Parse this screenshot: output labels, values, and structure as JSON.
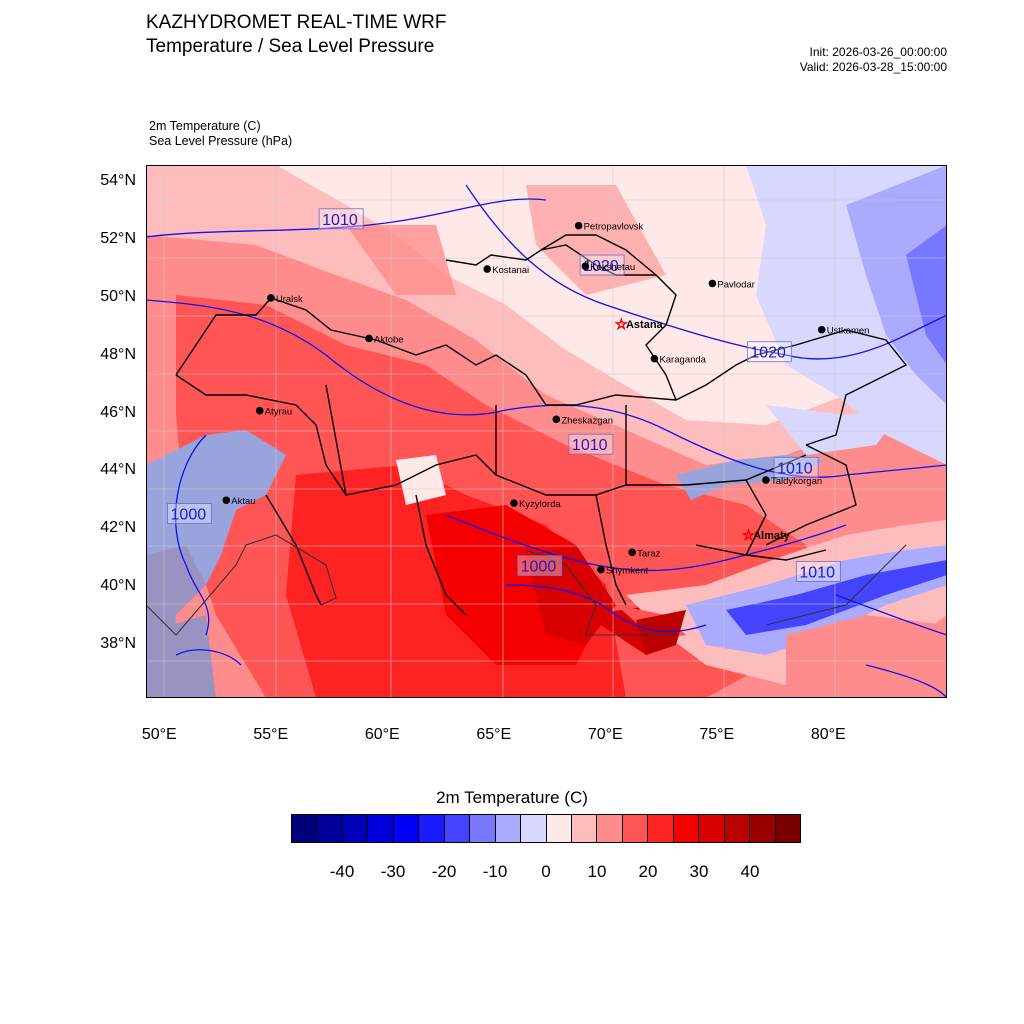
{
  "header": {
    "title_line1": "KAZHYDROMET REAL-TIME WRF",
    "title_line2": "Temperature / Sea Level Pressure",
    "init": "Init: 2026-03-26_00:00:00",
    "valid": "Valid: 2026-03-28_15:00:00",
    "var1": "2m Temperature   (C)",
    "var2": "Sea Level Pressure   (hPa)"
  },
  "axes": {
    "lat_labels": [
      "54°N",
      "52°N",
      "50°N",
      "48°N",
      "46°N",
      "44°N",
      "42°N",
      "40°N",
      "38°N"
    ],
    "lon_labels": [
      "50°E",
      "55°E",
      "60°E",
      "65°E",
      "70°E",
      "75°E",
      "80°E"
    ]
  },
  "cities": [
    {
      "name": "Petropavlovsk",
      "lon": 68.6,
      "lat": 52.5,
      "capital": false
    },
    {
      "name": "Kostanai",
      "lon": 64.5,
      "lat": 51.0,
      "capital": false
    },
    {
      "name": "Kokshetau",
      "lon": 68.9,
      "lat": 51.1,
      "capital": false
    },
    {
      "name": "Uralsk",
      "lon": 54.8,
      "lat": 50.0,
      "capital": false
    },
    {
      "name": "Pavlodar",
      "lon": 74.6,
      "lat": 50.5,
      "capital": false
    },
    {
      "name": "Astana",
      "lon": 70.5,
      "lat": 49.1,
      "capital": true
    },
    {
      "name": "Aktobe",
      "lon": 59.2,
      "lat": 48.6,
      "capital": false
    },
    {
      "name": "Ustkamen",
      "lon": 79.5,
      "lat": 48.9,
      "capital": false
    },
    {
      "name": "Karaganda",
      "lon": 72.0,
      "lat": 47.9,
      "capital": false
    },
    {
      "name": "Atyrau",
      "lon": 54.3,
      "lat": 46.1,
      "capital": false
    },
    {
      "name": "Zheskazgan",
      "lon": 67.6,
      "lat": 45.8,
      "capital": false
    },
    {
      "name": "Taldykorgan",
      "lon": 77.0,
      "lat": 43.7,
      "capital": false
    },
    {
      "name": "Aktau",
      "lon": 52.8,
      "lat": 43.0,
      "capital": false
    },
    {
      "name": "Kyzylorda",
      "lon": 65.7,
      "lat": 42.9,
      "capital": false
    },
    {
      "name": "Almaty",
      "lon": 76.2,
      "lat": 41.8,
      "capital": true
    },
    {
      "name": "Taraz",
      "lon": 71.0,
      "lat": 41.2,
      "capital": false
    },
    {
      "name": "Shymkent",
      "lon": 69.6,
      "lat": 40.6,
      "capital": false
    }
  ],
  "isobar_labels": [
    {
      "text": "1010",
      "lon": 57.1,
      "lat": 52.6
    },
    {
      "text": "1020",
      "lon": 68.8,
      "lat": 51.0
    },
    {
      "text": "1020",
      "lon": 76.3,
      "lat": 48.0
    },
    {
      "text": "1010",
      "lon": 68.3,
      "lat": 44.8
    },
    {
      "text": "1010",
      "lon": 77.5,
      "lat": 44.0
    },
    {
      "text": "1000",
      "lon": 50.3,
      "lat": 42.4
    },
    {
      "text": "1000",
      "lon": 66.0,
      "lat": 40.6
    },
    {
      "text": "1010",
      "lon": 78.5,
      "lat": 40.4
    }
  ],
  "colorbar": {
    "title": "2m Temperature  (C)",
    "labels": [
      "-40",
      "-30",
      "-20",
      "-10",
      "0",
      "10",
      "20",
      "30",
      "40"
    ],
    "colors": [
      "#00007a",
      "#00009a",
      "#0000bb",
      "#0000dd",
      "#0000f8",
      "#1a1aff",
      "#4444ff",
      "#7777ff",
      "#aaaaff",
      "#d8d8ff",
      "#ffe8e8",
      "#ffbcbc",
      "#ff8c8c",
      "#ff5555",
      "#ff2222",
      "#f50000",
      "#d80000",
      "#bb0000",
      "#9a0000",
      "#7a0000"
    ]
  }
}
